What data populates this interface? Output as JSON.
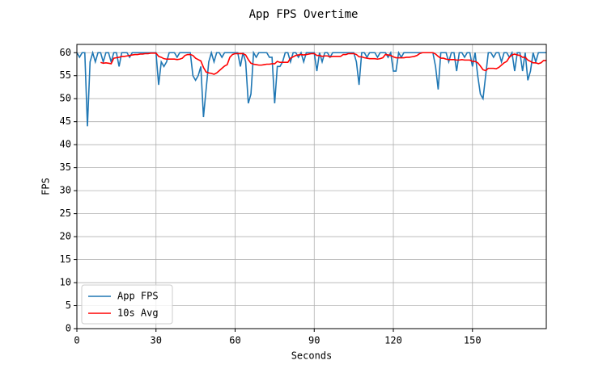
{
  "chart_data": {
    "type": "line",
    "title": "App FPS Overtime",
    "xlabel": "Seconds",
    "ylabel": "FPS",
    "x": [
      0,
      1,
      2,
      3,
      4,
      5,
      6,
      7,
      8,
      9,
      10,
      11,
      12,
      13,
      14,
      15,
      16,
      17,
      18,
      19,
      20,
      21,
      22,
      23,
      24,
      25,
      26,
      27,
      28,
      29,
      30,
      31,
      32,
      33,
      34,
      35,
      36,
      37,
      38,
      39,
      40,
      41,
      42,
      43,
      44,
      45,
      46,
      47,
      48,
      49,
      50,
      51,
      52,
      53,
      54,
      55,
      56,
      57,
      58,
      59,
      60,
      61,
      62,
      63,
      64,
      65,
      66,
      67,
      68,
      69,
      70,
      71,
      72,
      73,
      74,
      75,
      76,
      77,
      78,
      79,
      80,
      81,
      82,
      83,
      84,
      85,
      86,
      87,
      88,
      89,
      90,
      91,
      92,
      93,
      94,
      95,
      96,
      97,
      98,
      99,
      100,
      101,
      102,
      103,
      104,
      105,
      106,
      107,
      108,
      109,
      110,
      111,
      112,
      113,
      114,
      115,
      116,
      117,
      118,
      119,
      120,
      121,
      122,
      123,
      124,
      125,
      126,
      127,
      128,
      129,
      130,
      131,
      132,
      133,
      134,
      135,
      136,
      137,
      138,
      139,
      140,
      141,
      142,
      143,
      144,
      145,
      146,
      147,
      148,
      149,
      150,
      151,
      152,
      153,
      154,
      155,
      156,
      157,
      158,
      159,
      160,
      161,
      162,
      163,
      164,
      165,
      166,
      167,
      168,
      169,
      170,
      171,
      172,
      173,
      174,
      175,
      176,
      177,
      178
    ],
    "series": [
      {
        "name": "App FPS",
        "color": "#1f77b4",
        "values": [
          60,
          59,
          60,
          60,
          44,
          58,
          60,
          58,
          60,
          60,
          58,
          60,
          60,
          58,
          60,
          60,
          57,
          60,
          60,
          60,
          59,
          60,
          60,
          60,
          60,
          60,
          60,
          60,
          60,
          60,
          60,
          53,
          58,
          57,
          58,
          60,
          60,
          60,
          59,
          60,
          60,
          60,
          60,
          60,
          55,
          54,
          55,
          57,
          46,
          52,
          58,
          60,
          58,
          60,
          60,
          59,
          60,
          60,
          60,
          60,
          60,
          60,
          57,
          60,
          58,
          49,
          51,
          60,
          59,
          60,
          60,
          60,
          60,
          59,
          59,
          49,
          57,
          57,
          58,
          60,
          60,
          58,
          60,
          60,
          59,
          60,
          58,
          60,
          60,
          60,
          60,
          56,
          60,
          58,
          60,
          60,
          59,
          60,
          60,
          60,
          60,
          60,
          60,
          60,
          60,
          60,
          58,
          53,
          60,
          60,
          59,
          60,
          60,
          60,
          59,
          60,
          60,
          60,
          59,
          60,
          56,
          56,
          60,
          59,
          60,
          60,
          60,
          60,
          60,
          60,
          60,
          60,
          60,
          60,
          60,
          60,
          57,
          52,
          60,
          60,
          60,
          58,
          60,
          60,
          56,
          60,
          60,
          59,
          60,
          60,
          57,
          60,
          55,
          51,
          50,
          55,
          60,
          60,
          59,
          60,
          60,
          58,
          60,
          60,
          59,
          60,
          56,
          60,
          60,
          56,
          60,
          54,
          56,
          60,
          58,
          60,
          60,
          60,
          60
        ]
      },
      {
        "name": "10s Avg",
        "color": "#ff0000",
        "values": [
          null,
          null,
          null,
          null,
          null,
          null,
          null,
          null,
          null,
          57.9,
          57.7,
          57.8,
          57.7,
          57.6,
          58.8,
          58.9,
          59.0,
          59.2,
          59.2,
          59.3,
          59.4,
          59.5,
          59.6,
          59.6,
          59.7,
          59.7,
          59.8,
          59.8,
          59.9,
          59.9,
          59.9,
          59.2,
          59.0,
          58.7,
          58.6,
          58.6,
          58.6,
          58.6,
          58.5,
          58.6,
          58.8,
          59.4,
          59.6,
          59.6,
          59.4,
          58.8,
          58.5,
          58.2,
          56.8,
          55.8,
          55.6,
          55.5,
          55.3,
          55.6,
          56.1,
          56.6,
          57.1,
          57.4,
          59.0,
          59.6,
          59.8,
          59.8,
          59.8,
          59.8,
          59.5,
          58.5,
          57.7,
          57.5,
          57.4,
          57.3,
          57.3,
          57.4,
          57.5,
          57.5,
          57.6,
          57.6,
          58.1,
          57.9,
          57.9,
          57.9,
          57.9,
          58.8,
          59.1,
          59.4,
          59.5,
          59.6,
          59.5,
          59.6,
          59.7,
          59.8,
          59.8,
          59.4,
          59.4,
          59.2,
          59.3,
          59.3,
          59.1,
          59.2,
          59.2,
          59.2,
          59.2,
          59.6,
          59.6,
          59.8,
          59.8,
          59.8,
          59.6,
          59.1,
          59.1,
          58.9,
          58.8,
          58.7,
          58.7,
          58.7,
          58.6,
          58.7,
          58.9,
          59.6,
          59.5,
          59.4,
          59.1,
          58.9,
          58.9,
          58.9,
          58.9,
          59.0,
          59.0,
          59.1,
          59.2,
          59.4,
          59.8,
          60.0,
          60.0,
          60.0,
          60.0,
          60.0,
          59.7,
          59.2,
          58.8,
          58.8,
          58.6,
          58.5,
          58.5,
          58.5,
          58.4,
          58.4,
          58.5,
          58.4,
          58.4,
          58.4,
          58.1,
          58.1,
          57.8,
          57.1,
          56.3,
          56.1,
          56.6,
          56.6,
          56.6,
          56.5,
          56.8,
          57.3,
          57.8,
          58.1,
          59.0,
          59.5,
          59.7,
          59.5,
          59.4,
          59.0,
          59.0,
          58.4,
          58.1,
          57.8,
          57.8,
          57.6,
          57.8,
          58.3,
          58.3
        ]
      }
    ],
    "xlim": [
      0,
      178
    ],
    "xticks": [
      0,
      30,
      60,
      90,
      120,
      150
    ],
    "ylim": [
      0,
      61.8
    ],
    "yticks": [
      0,
      5,
      10,
      15,
      20,
      25,
      30,
      35,
      40,
      45,
      50,
      55,
      60
    ],
    "grid": true,
    "legend": "lower left"
  }
}
